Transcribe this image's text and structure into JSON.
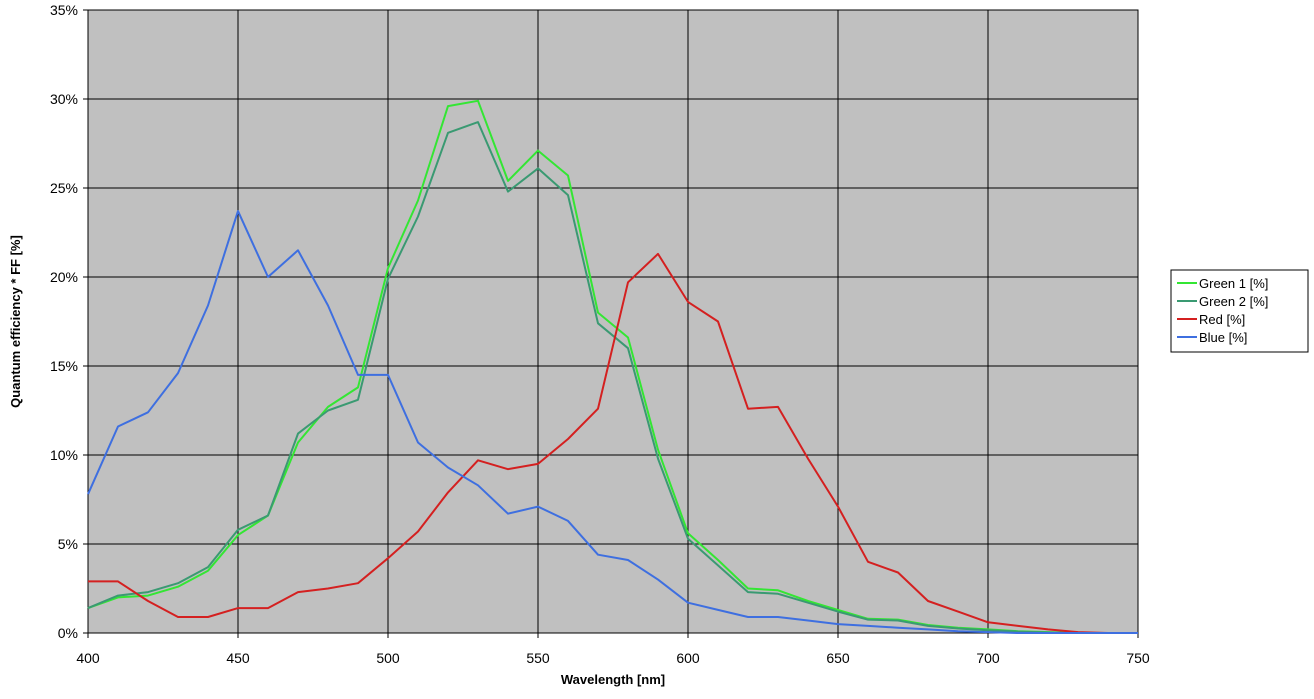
{
  "chart_data": {
    "type": "line",
    "xlabel": "Wavelength [nm]",
    "ylabel": "Quantum efficiency * FF [%]",
    "xlim": [
      400,
      750
    ],
    "ylim": [
      0,
      35
    ],
    "x_ticks": [
      400,
      450,
      500,
      550,
      600,
      650,
      700,
      750
    ],
    "x_tick_labels": [
      "400",
      "450",
      "500",
      "550",
      "600",
      "650",
      "700",
      "750"
    ],
    "y_ticks": [
      0,
      5,
      10,
      15,
      20,
      25,
      30,
      35
    ],
    "y_tick_labels": [
      "0%",
      "5%",
      "10%",
      "15%",
      "20%",
      "25%",
      "30%",
      "35%"
    ],
    "grid": true,
    "plot_background": "#c0c0c0",
    "grid_color": "#000000",
    "legend_position": "right",
    "x": [
      400,
      410,
      420,
      430,
      440,
      450,
      460,
      470,
      480,
      490,
      500,
      510,
      520,
      530,
      540,
      550,
      560,
      570,
      580,
      590,
      600,
      610,
      620,
      630,
      640,
      650,
      660,
      670,
      680,
      690,
      700,
      710,
      720,
      730,
      740,
      750
    ],
    "series": [
      {
        "name": "Green 1 [%]",
        "color": "#33e633",
        "values": [
          1.4,
          2.0,
          2.1,
          2.6,
          3.5,
          5.5,
          6.6,
          10.7,
          12.7,
          13.8,
          20.5,
          24.3,
          29.6,
          29.9,
          25.4,
          27.1,
          25.7,
          18.0,
          16.6,
          10.3,
          5.6,
          4.1,
          2.5,
          2.4,
          1.8,
          1.3,
          0.8,
          0.75,
          0.45,
          0.3,
          0.2,
          0.1,
          0.05,
          0.0,
          0.0,
          0.0
        ]
      },
      {
        "name": "Green 2 [%]",
        "color": "#3a9a72",
        "values": [
          1.4,
          2.1,
          2.3,
          2.8,
          3.7,
          5.8,
          6.6,
          11.2,
          12.5,
          13.1,
          19.9,
          23.4,
          28.1,
          28.7,
          24.8,
          26.1,
          24.6,
          17.4,
          16.0,
          9.8,
          5.3,
          3.8,
          2.3,
          2.2,
          1.7,
          1.2,
          0.75,
          0.7,
          0.4,
          0.25,
          0.15,
          0.08,
          0.03,
          0.0,
          0.0,
          0.0
        ]
      },
      {
        "name": "Red [%]",
        "color": "#d42020",
        "values": [
          2.9,
          2.9,
          1.8,
          0.9,
          0.9,
          1.4,
          1.4,
          2.3,
          2.5,
          2.8,
          4.2,
          5.7,
          7.9,
          9.7,
          9.2,
          9.5,
          10.9,
          12.6,
          19.7,
          21.3,
          18.6,
          17.5,
          12.6,
          12.7,
          9.8,
          7.1,
          4.0,
          3.4,
          1.8,
          1.2,
          0.6,
          0.4,
          0.2,
          0.05,
          0.0,
          0.0
        ]
      },
      {
        "name": "Blue [%]",
        "color": "#3e6fe0",
        "values": [
          7.8,
          11.6,
          12.4,
          14.6,
          18.4,
          23.7,
          20.0,
          21.5,
          18.4,
          14.5,
          14.5,
          10.7,
          9.3,
          8.3,
          6.7,
          7.1,
          6.3,
          4.4,
          4.1,
          3.0,
          1.7,
          1.3,
          0.9,
          0.9,
          0.7,
          0.5,
          0.4,
          0.3,
          0.2,
          0.1,
          0.05,
          0.0,
          0.0,
          0.0,
          0.0,
          0.0
        ]
      }
    ]
  }
}
